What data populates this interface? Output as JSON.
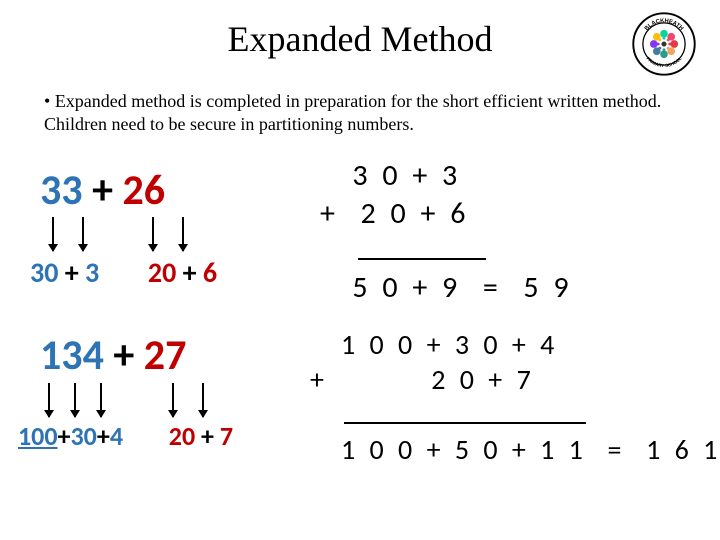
{
  "title": "Expanded Method",
  "logo": {
    "top_text": "BLACKHEATH",
    "bottom_text": "PRIMARY SCHOOL",
    "ring_color": "#000000",
    "inner_bg": "#ffffff",
    "burst_colors": [
      "#e63946",
      "#f4a261",
      "#2a9d8f",
      "#457b9d",
      "#8338ec",
      "#ffbe0b",
      "#06d6a0",
      "#ef476f"
    ]
  },
  "bullet": "Expanded method is completed in preparation for the short efficient written method. Children need to be secure in partitioning numbers.",
  "colors": {
    "blue": "#2e74b5",
    "red": "#c00000",
    "black": "#000000"
  },
  "example1": {
    "expression": {
      "a": "33",
      "op": "+",
      "b": "26"
    },
    "partition_a": {
      "tens": "30",
      "op": "+",
      "ones": "3"
    },
    "partition_b": {
      "tens": "20",
      "op": "+",
      "ones": "6"
    },
    "column": {
      "line1": "3 0 + 3",
      "line2_op": "+",
      "line2": "2 0 + 6",
      "result": "5 0 + 9  =  5 9"
    }
  },
  "example2": {
    "expression": {
      "a": "134",
      "op": "+",
      "b": "27"
    },
    "partition_a": {
      "hundreds": "100",
      "tens": "30",
      "ones": "4",
      "op": "+"
    },
    "partition_b": {
      "tens": "20",
      "op": "+",
      "ones": "7"
    },
    "column": {
      "line1": "1 0 0 + 3 0 + 4",
      "line2_op": "+",
      "line2": "2 0 + 7",
      "result": "1 0 0 + 5 0 + 1 1  =  1 6 1"
    }
  }
}
